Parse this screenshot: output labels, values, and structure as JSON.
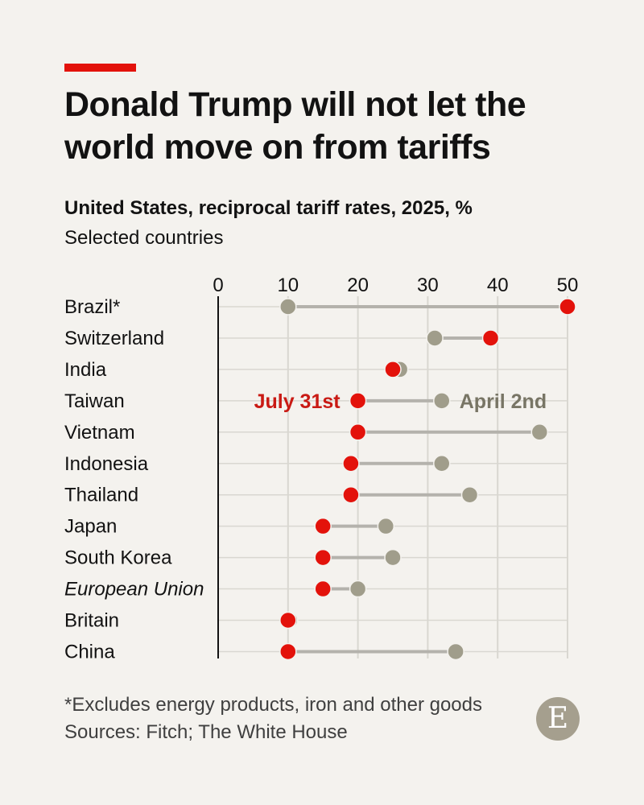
{
  "header": {
    "title": "Donald Trump will not let the world move on from tariffs",
    "subtitle": "United States, reciprocal tariff rates, 2025, %",
    "subsubtitle": "Selected countries"
  },
  "colors": {
    "july": "#e3120b",
    "april": "#a09d8b",
    "connector": "#b4b2ac",
    "grid": "#d9d7d1",
    "accent_bar": "#e3120b",
    "july_label": "#c91a14",
    "april_label": "#787565"
  },
  "chart_data": {
    "type": "dumbbell",
    "title": "United States, reciprocal tariff rates, 2025, %",
    "subtitle": "Selected countries",
    "xlim": [
      0,
      50
    ],
    "xticks": [
      0,
      10,
      20,
      30,
      40,
      50
    ],
    "series": [
      {
        "name": "July 31st",
        "key": "july"
      },
      {
        "name": "April 2nd",
        "key": "april"
      }
    ],
    "categories": [
      {
        "name": "Brazil*",
        "july": 50,
        "april": 10,
        "italic": false
      },
      {
        "name": "Switzerland",
        "july": 39,
        "april": 31,
        "italic": false
      },
      {
        "name": "India",
        "july": 25,
        "april": 26,
        "italic": false
      },
      {
        "name": "Taiwan",
        "july": 20,
        "april": 32,
        "italic": false
      },
      {
        "name": "Vietnam",
        "july": 20,
        "april": 46,
        "italic": false
      },
      {
        "name": "Indonesia",
        "july": 19,
        "april": 32,
        "italic": false
      },
      {
        "name": "Thailand",
        "july": 19,
        "april": 36,
        "italic": false
      },
      {
        "name": "Japan",
        "july": 15,
        "april": 24,
        "italic": false
      },
      {
        "name": "South Korea",
        "july": 15,
        "april": 25,
        "italic": false
      },
      {
        "name": "European Union",
        "july": 15,
        "april": 20,
        "italic": true
      },
      {
        "name": "Britain",
        "july": 10,
        "april": 10,
        "italic": false
      },
      {
        "name": "China",
        "july": 10,
        "april": 34,
        "italic": false
      }
    ],
    "annotations": [
      {
        "text": "July 31st",
        "series": "july",
        "category": "Taiwan",
        "side": "left"
      },
      {
        "text": "April 2nd",
        "series": "april",
        "category": "Taiwan",
        "side": "right"
      }
    ]
  },
  "footer": {
    "note": "*Excludes energy products, iron and other goods",
    "sources": "Sources: Fitch; The White House",
    "logo_letter": "E"
  }
}
